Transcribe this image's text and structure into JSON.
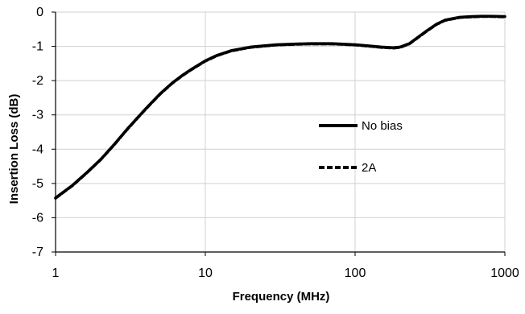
{
  "chart_data": {
    "type": "line",
    "title": "",
    "xlabel": "Frequency (MHz)",
    "ylabel": "Insertion Loss (dB)",
    "xscale": "log",
    "xlim": [
      1,
      1000
    ],
    "ylim": [
      -7,
      0
    ],
    "xticks": [
      1,
      10,
      100,
      1000
    ],
    "xtick_labels": [
      "1",
      "10",
      "100",
      "1000"
    ],
    "yticks": [
      0,
      -1,
      -2,
      -3,
      -4,
      -5,
      -6,
      -7
    ],
    "ytick_labels": [
      "0",
      "-1",
      "-2",
      "-3",
      "-4",
      "-5",
      "-6",
      "-7"
    ],
    "grid": true,
    "legend_position": "center-right",
    "series": [
      {
        "name": "No bias",
        "style": "solid",
        "color": "#000000",
        "x": [
          1,
          1.3,
          1.6,
          2,
          2.5,
          3,
          4,
          5,
          6,
          7,
          8,
          10,
          12,
          15,
          20,
          25,
          30,
          40,
          50,
          60,
          70,
          80,
          100,
          120,
          150,
          180,
          200,
          230,
          260,
          300,
          350,
          400,
          500,
          600,
          700,
          800,
          1000
        ],
        "y": [
          -5.42,
          -5.05,
          -4.7,
          -4.3,
          -3.83,
          -3.42,
          -2.82,
          -2.38,
          -2.07,
          -1.85,
          -1.68,
          -1.42,
          -1.26,
          -1.12,
          -1.02,
          -0.98,
          -0.95,
          -0.93,
          -0.92,
          -0.92,
          -0.92,
          -0.93,
          -0.95,
          -0.98,
          -1.02,
          -1.04,
          -1.02,
          -0.92,
          -0.75,
          -0.55,
          -0.35,
          -0.23,
          -0.15,
          -0.13,
          -0.12,
          -0.12,
          -0.13
        ]
      },
      {
        "name": "2A",
        "style": "dashed",
        "color": "#000000",
        "x": [
          1,
          1.3,
          1.6,
          2,
          2.5,
          3,
          4,
          5,
          6,
          7,
          8,
          10,
          12,
          15,
          20,
          25,
          30,
          40,
          50,
          60,
          70,
          80,
          100,
          120,
          150,
          180,
          200,
          230,
          260,
          300,
          350,
          400,
          500,
          600,
          700,
          800,
          1000
        ],
        "y": [
          -5.43,
          -5.06,
          -4.71,
          -4.31,
          -3.84,
          -3.43,
          -2.83,
          -2.39,
          -2.08,
          -1.86,
          -1.69,
          -1.43,
          -1.27,
          -1.13,
          -1.03,
          -0.99,
          -0.96,
          -0.94,
          -0.93,
          -0.93,
          -0.93,
          -0.94,
          -0.96,
          -0.99,
          -1.03,
          -1.05,
          -1.03,
          -0.93,
          -0.76,
          -0.56,
          -0.36,
          -0.24,
          -0.16,
          -0.14,
          -0.13,
          -0.13,
          -0.14
        ]
      }
    ]
  }
}
